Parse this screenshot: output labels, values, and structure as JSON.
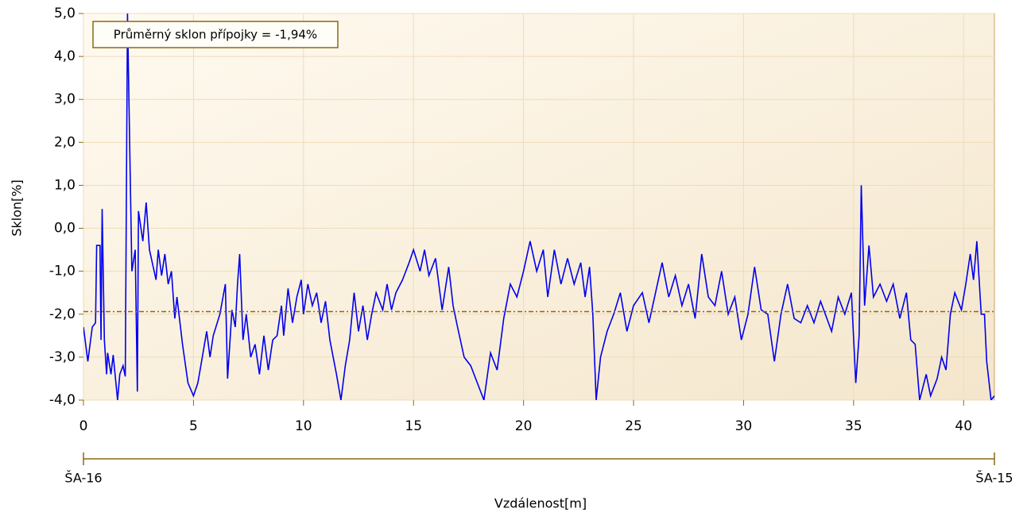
{
  "chart_data": {
    "type": "line",
    "annotation": "Průměrný sklon přípojky = -1,94%",
    "x_label": "Vzdálenost[m]",
    "y_label": "Sklon[%]",
    "stations": [
      "ŠA-16",
      "ŠA-15"
    ],
    "mean_line": -1.94,
    "mean_color": "#8b6914",
    "xlim": [
      0,
      41.4
    ],
    "ylim": [
      -4,
      5
    ],
    "xticks": [
      0,
      5,
      10,
      15,
      20,
      25,
      30,
      35,
      40
    ],
    "yticks": [
      {
        "value": 5,
        "label": "5,0"
      },
      {
        "value": 4,
        "label": "4,0"
      },
      {
        "value": 3,
        "label": "3,0"
      },
      {
        "value": 2,
        "label": "2,0"
      },
      {
        "value": 1,
        "label": "1,0"
      },
      {
        "value": 0,
        "label": "0,0"
      },
      {
        "value": -1,
        "label": "-1,0"
      },
      {
        "value": -2,
        "label": "-2,0"
      },
      {
        "value": -3,
        "label": "-3,0"
      },
      {
        "value": -4,
        "label": "-4,0"
      }
    ],
    "grid": true,
    "series": [
      {
        "color": "#0000ee",
        "x": [
          0,
          0.2,
          0.4,
          0.55,
          0.6,
          0.75,
          0.8,
          0.85,
          0.95,
          1.05,
          1.1,
          1.25,
          1.35,
          1.55,
          1.65,
          1.8,
          1.9,
          2.0,
          2.1,
          2.2,
          2.35,
          2.45,
          2.5,
          2.7,
          2.85,
          3.0,
          3.3,
          3.4,
          3.55,
          3.7,
          3.85,
          4.0,
          4.15,
          4.25,
          4.5,
          4.75,
          5.0,
          5.2,
          5.4,
          5.6,
          5.75,
          5.9,
          6.2,
          6.45,
          6.55,
          6.75,
          6.9,
          7.0,
          7.1,
          7.25,
          7.4,
          7.6,
          7.8,
          8.0,
          8.2,
          8.4,
          8.6,
          8.8,
          9.0,
          9.1,
          9.3,
          9.5,
          9.7,
          9.9,
          10.0,
          10.2,
          10.4,
          10.6,
          10.8,
          11.0,
          11.2,
          11.5,
          11.7,
          11.9,
          12.1,
          12.3,
          12.5,
          12.7,
          12.9,
          13.1,
          13.3,
          13.6,
          13.8,
          14.0,
          14.2,
          14.5,
          14.8,
          15.0,
          15.3,
          15.5,
          15.7,
          16.0,
          16.3,
          16.6,
          16.8,
          17.0,
          17.3,
          17.6,
          17.9,
          18.2,
          18.5,
          18.8,
          19.1,
          19.4,
          19.7,
          20.0,
          20.3,
          20.6,
          20.9,
          21.1,
          21.4,
          21.7,
          22.0,
          22.3,
          22.6,
          22.8,
          23.0,
          23.15,
          23.3,
          23.5,
          23.8,
          24.1,
          24.4,
          24.7,
          25.0,
          25.4,
          25.7,
          26.0,
          26.3,
          26.6,
          26.9,
          27.2,
          27.5,
          27.8,
          28.1,
          28.4,
          28.7,
          29.0,
          29.3,
          29.6,
          29.9,
          30.2,
          30.5,
          30.8,
          31.1,
          31.4,
          31.7,
          32.0,
          32.3,
          32.6,
          32.9,
          33.2,
          33.5,
          34.0,
          34.3,
          34.6,
          34.9,
          35.1,
          35.25,
          35.35,
          35.5,
          35.7,
          35.9,
          36.2,
          36.5,
          36.8,
          37.1,
          37.4,
          37.6,
          37.8,
          38.0,
          38.3,
          38.5,
          38.8,
          39.0,
          39.2,
          39.4,
          39.6,
          39.9,
          40.1,
          40.3,
          40.45,
          40.6,
          40.8,
          40.95,
          41.05,
          41.25,
          41.4
        ],
        "values": [
          -2.3,
          -3.1,
          -2.3,
          -2.2,
          -0.4,
          -0.4,
          -2.6,
          0.45,
          -2.6,
          -3.4,
          -2.9,
          -3.4,
          -2.95,
          -4.0,
          -3.4,
          -3.2,
          -3.45,
          5.0,
          2.0,
          -1.0,
          -0.5,
          -3.8,
          0.4,
          -0.3,
          0.6,
          -0.5,
          -1.2,
          -0.5,
          -1.1,
          -0.6,
          -1.3,
          -1.0,
          -2.1,
          -1.6,
          -2.7,
          -3.6,
          -3.9,
          -3.6,
          -3.0,
          -2.4,
          -3.0,
          -2.5,
          -2.0,
          -1.3,
          -3.5,
          -1.9,
          -2.3,
          -1.3,
          -0.6,
          -2.6,
          -2.0,
          -3.0,
          -2.7,
          -3.4,
          -2.5,
          -3.3,
          -2.6,
          -2.5,
          -1.8,
          -2.5,
          -1.4,
          -2.2,
          -1.6,
          -1.2,
          -2.0,
          -1.3,
          -1.8,
          -1.5,
          -2.2,
          -1.7,
          -2.6,
          -3.4,
          -4.0,
          -3.2,
          -2.6,
          -1.5,
          -2.4,
          -1.8,
          -2.6,
          -2.0,
          -1.5,
          -1.9,
          -1.3,
          -1.9,
          -1.5,
          -1.2,
          -0.8,
          -0.5,
          -1.0,
          -0.5,
          -1.1,
          -0.7,
          -1.9,
          -0.9,
          -1.8,
          -2.3,
          -3.0,
          -3.2,
          -3.6,
          -4.0,
          -2.9,
          -3.3,
          -2.1,
          -1.3,
          -1.6,
          -1.0,
          -0.3,
          -1.0,
          -0.5,
          -1.6,
          -0.5,
          -1.3,
          -0.7,
          -1.3,
          -0.8,
          -1.6,
          -0.9,
          -2.0,
          -4.0,
          -3.0,
          -2.4,
          -2.0,
          -1.5,
          -2.4,
          -1.8,
          -1.5,
          -2.2,
          -1.5,
          -0.8,
          -1.6,
          -1.1,
          -1.8,
          -1.3,
          -2.1,
          -0.6,
          -1.6,
          -1.8,
          -1.0,
          -2.0,
          -1.6,
          -2.6,
          -2.0,
          -0.9,
          -1.9,
          -2.0,
          -3.1,
          -2.0,
          -1.3,
          -2.1,
          -2.2,
          -1.8,
          -2.2,
          -1.7,
          -2.4,
          -1.6,
          -2.0,
          -1.5,
          -3.6,
          -2.5,
          1.0,
          -1.8,
          -0.4,
          -1.6,
          -1.3,
          -1.7,
          -1.3,
          -2.1,
          -1.5,
          -2.6,
          -2.7,
          -4.0,
          -3.4,
          -3.9,
          -3.5,
          -3.0,
          -3.3,
          -2.0,
          -1.5,
          -1.9,
          -1.3,
          -0.6,
          -1.2,
          -0.3,
          -2.0,
          -2.0,
          -3.1,
          -4.0,
          -3.9
        ]
      }
    ]
  }
}
